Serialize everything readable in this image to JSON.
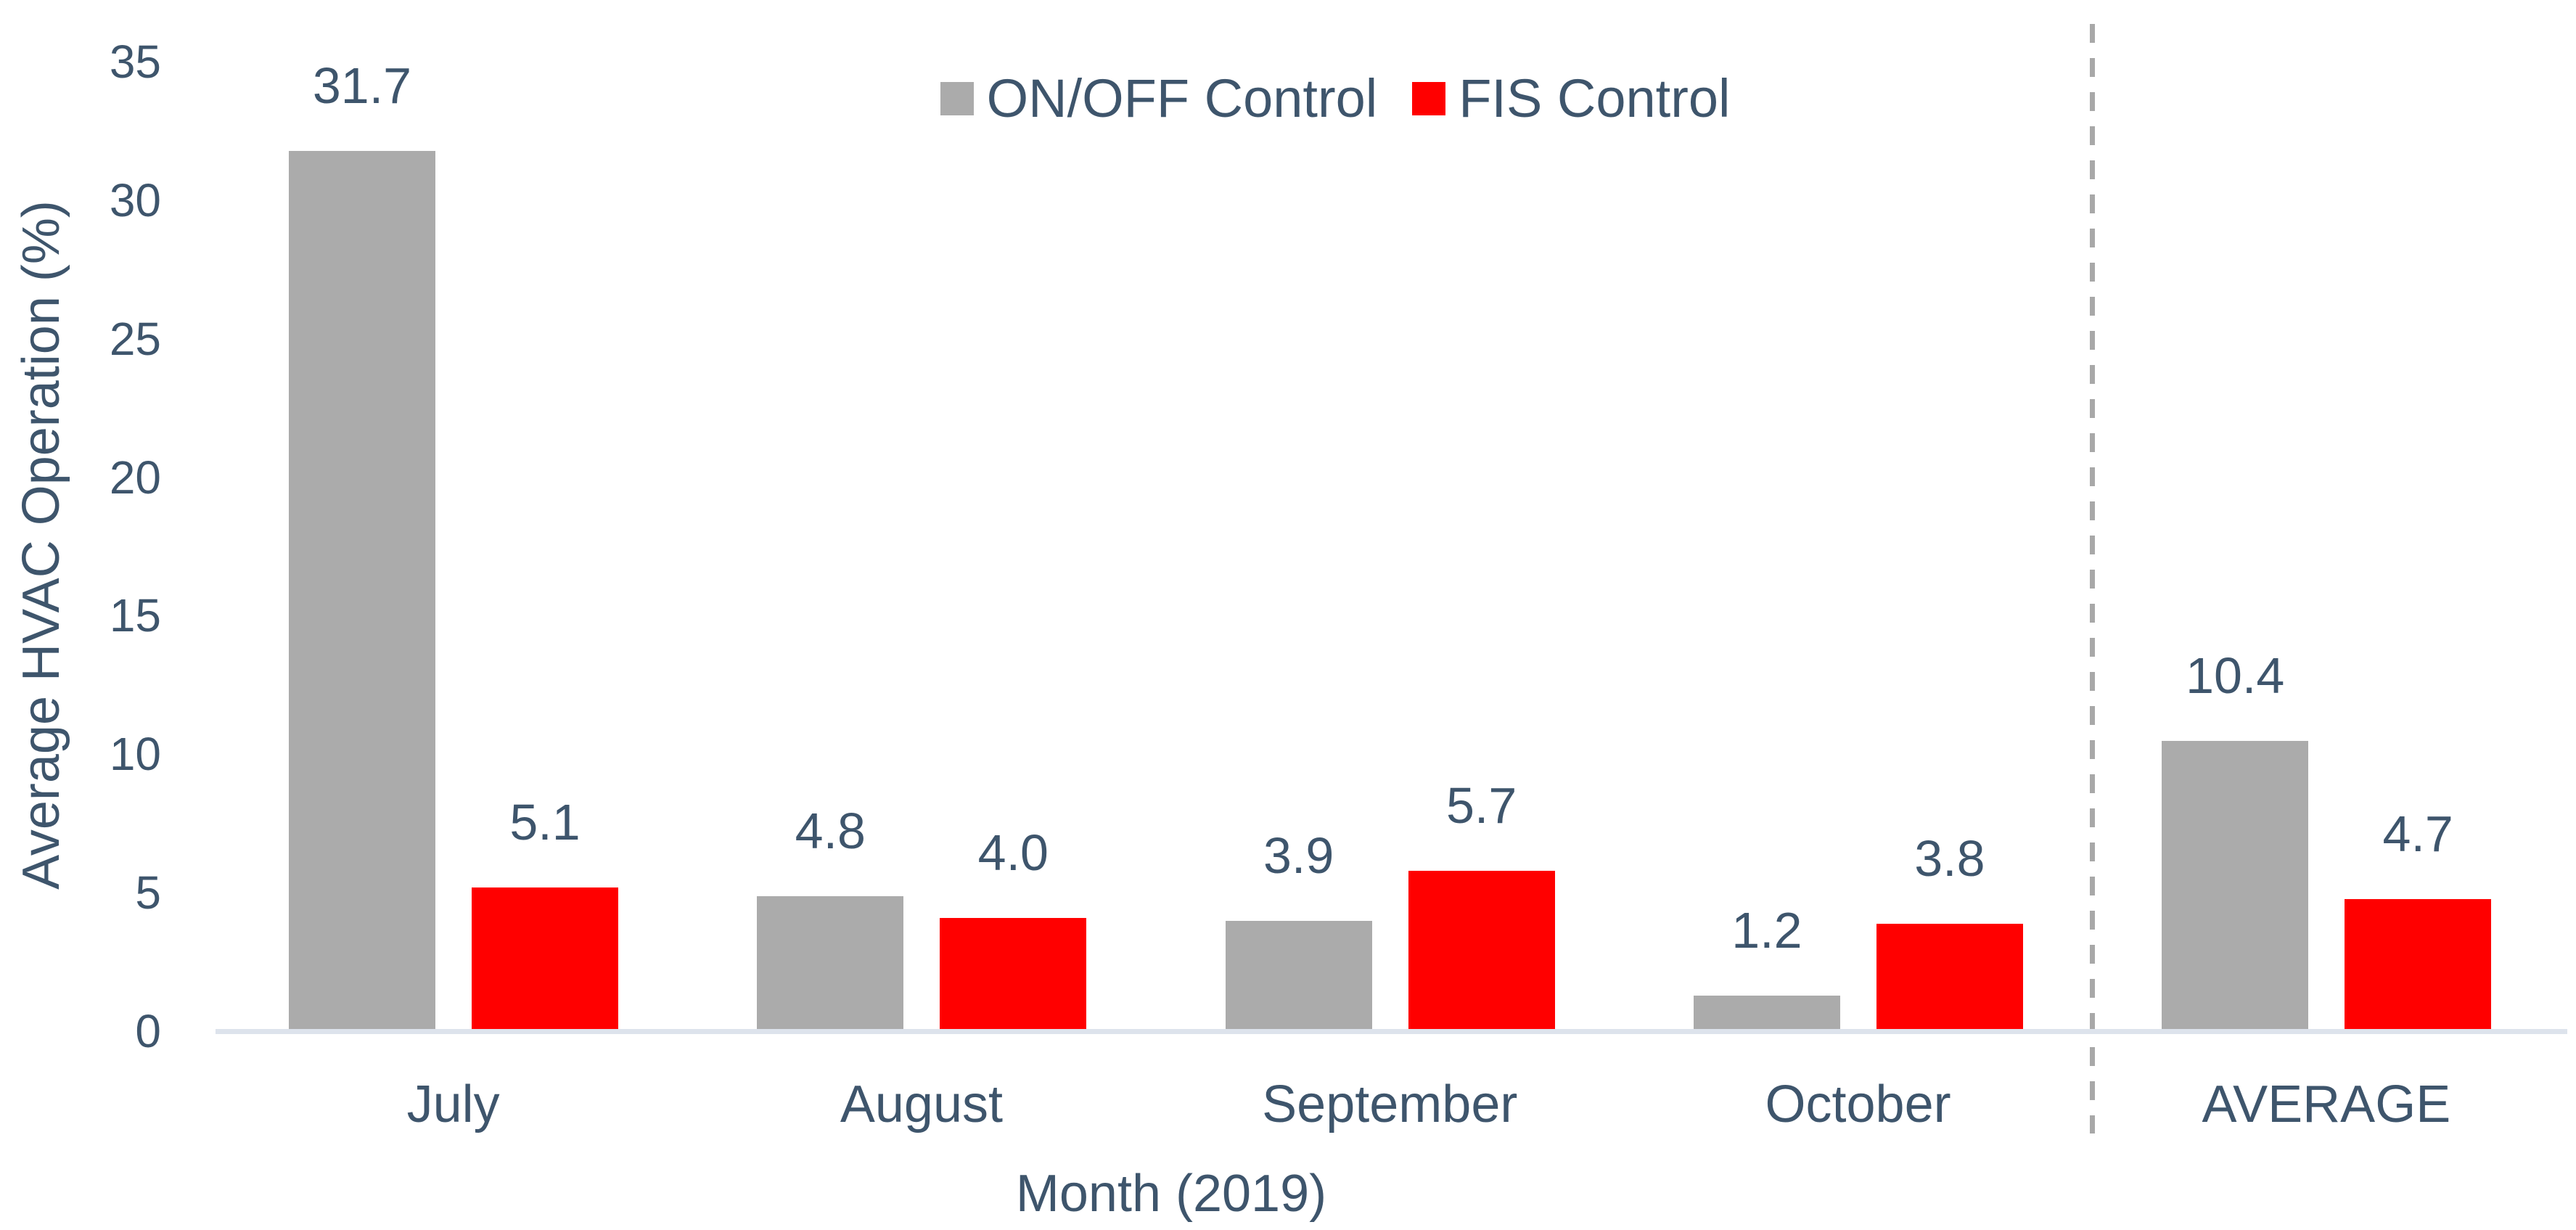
{
  "chart_data": {
    "type": "bar",
    "title": "",
    "xlabel": "Month (2019)",
    "ylabel": "Average HVAC Operation (%)",
    "categories": [
      "July",
      "August",
      "September",
      "October",
      "AVERAGE"
    ],
    "series": [
      {
        "name": "ON/OFF Control",
        "color": "#ABABAB",
        "values": [
          31.7,
          4.8,
          3.9,
          1.2,
          10.4
        ]
      },
      {
        "name": "FIS Control",
        "color": "#FF0000",
        "values": [
          5.1,
          4.0,
          5.7,
          3.8,
          4.7
        ]
      }
    ],
    "data_labels": {
      "ON/OFF Control": [
        "31.7",
        "4.8",
        "3.9",
        "1.2",
        "10.4"
      ],
      "FIS Control": [
        "5.1",
        "4.0",
        "5.7",
        "3.8",
        "4.7"
      ]
    },
    "ylim": [
      0,
      35
    ],
    "yticks": [
      0,
      5,
      10,
      15,
      20,
      25,
      30,
      35
    ],
    "grid": false,
    "legend_position": "top-center",
    "separator": {
      "type": "vertical-dashed-line",
      "before_category": "AVERAGE"
    }
  },
  "styles": {
    "text_color": "#3E556C",
    "bar_gray": "#ABABAB",
    "bar_red": "#FF0000",
    "axis_line_color": "#DDE3EC",
    "separator_color": "#A8A8A8",
    "background": "#FFFFFF"
  }
}
